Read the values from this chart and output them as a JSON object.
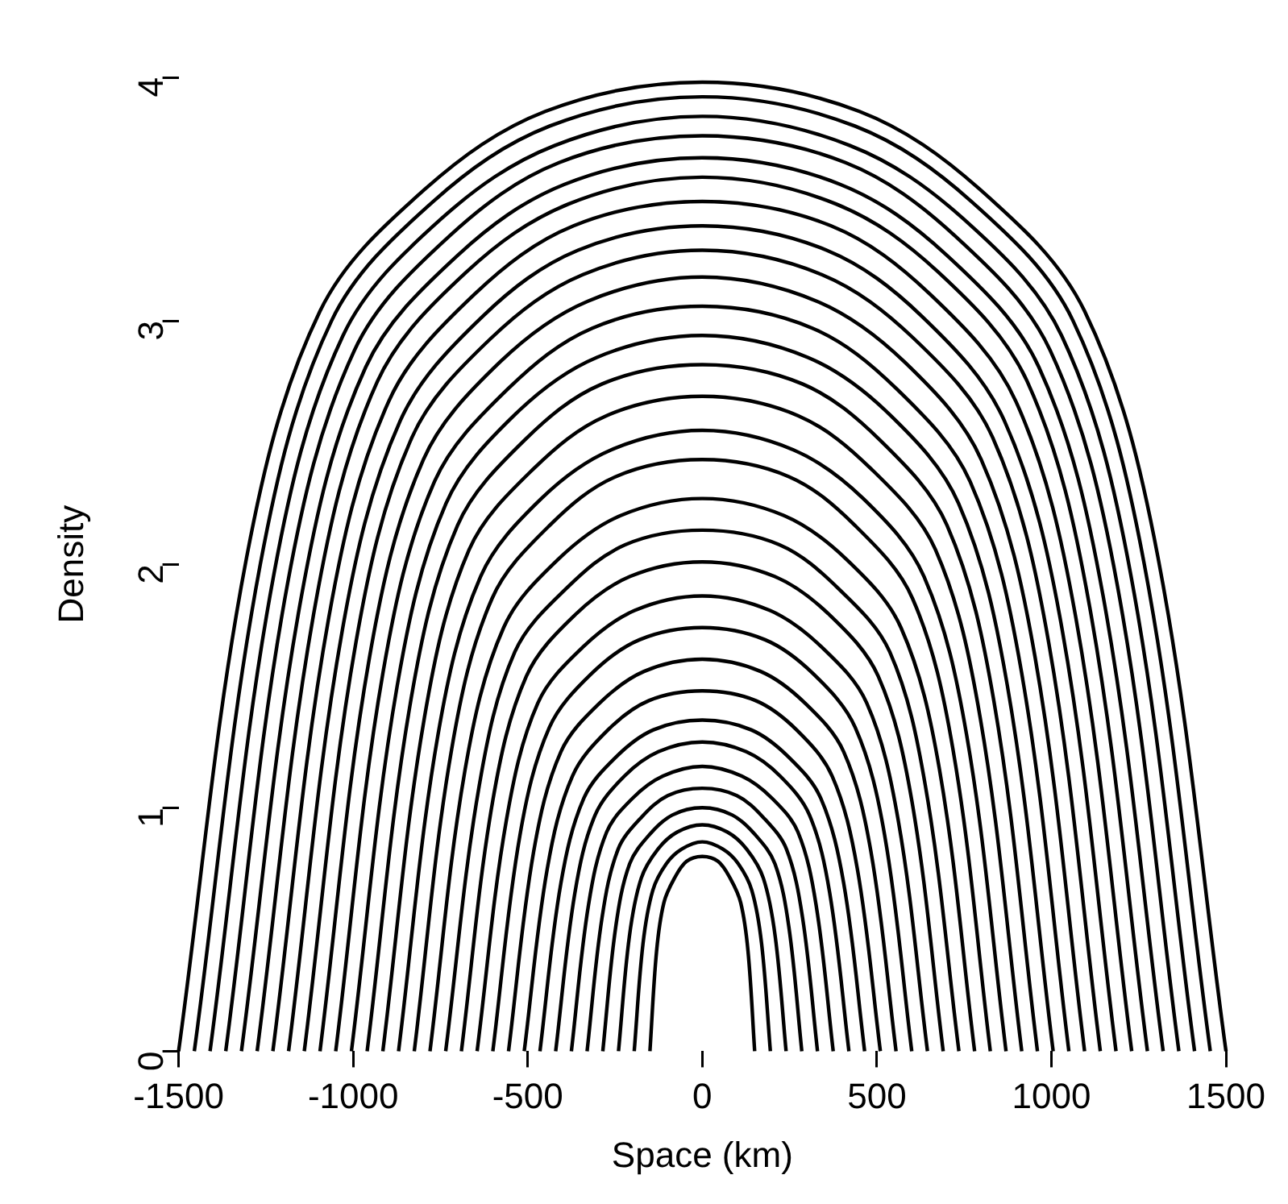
{
  "chart_data": {
    "type": "line",
    "xlabel": "Space (km)",
    "ylabel": "Density",
    "xlim": [
      -1500,
      1500
    ],
    "ylim": [
      0,
      4
    ],
    "xticks": [
      -1500,
      -1000,
      -500,
      0,
      500,
      1000,
      1500
    ],
    "yticks": [
      0,
      1,
      2,
      3,
      4
    ],
    "grid": false,
    "legend": false,
    "marker": "none",
    "line_style": "solid",
    "series": [
      {
        "color": "#000000",
        "x": [
          -1500,
          -1305,
          -1095,
          -795,
          -450,
          0,
          450,
          795,
          1095,
          1305,
          1500
        ],
        "values": [
          0,
          2.03,
          3.04,
          3.54,
          3.86,
          3.98,
          3.86,
          3.54,
          3.04,
          2.03,
          0
        ]
      },
      {
        "color": "#000000",
        "x": [
          -1455,
          -1266,
          -1062,
          -771,
          -437,
          0,
          437,
          771,
          1062,
          1266,
          1455
        ],
        "values": [
          0,
          2.0,
          3.0,
          3.49,
          3.8,
          3.92,
          3.8,
          3.49,
          3.0,
          2.0,
          0
        ]
      },
      {
        "color": "#000000",
        "x": [
          -1410,
          -1227,
          -1029,
          -747,
          -423,
          0,
          423,
          747,
          1029,
          1227,
          1410
        ],
        "values": [
          0,
          1.96,
          2.94,
          3.42,
          3.72,
          3.84,
          3.72,
          3.42,
          2.94,
          1.96,
          0
        ]
      },
      {
        "color": "#000000",
        "x": [
          -1365,
          -1188,
          -996,
          -723,
          -410,
          0,
          410,
          723,
          996,
          1188,
          1365
        ],
        "values": [
          0,
          1.92,
          2.88,
          3.35,
          3.65,
          3.76,
          3.65,
          3.35,
          2.88,
          1.92,
          0
        ]
      },
      {
        "color": "#000000",
        "x": [
          -1320,
          -1148,
          -964,
          -700,
          -396,
          0,
          396,
          700,
          964,
          1148,
          1320
        ],
        "values": [
          0,
          1.87,
          2.81,
          3.27,
          3.56,
          3.67,
          3.56,
          3.27,
          2.81,
          1.87,
          0
        ]
      },
      {
        "color": "#000000",
        "x": [
          -1275,
          -1109,
          -931,
          -676,
          -383,
          0,
          383,
          676,
          931,
          1109,
          1275
        ],
        "values": [
          0,
          1.83,
          2.75,
          3.2,
          3.48,
          3.59,
          3.48,
          3.2,
          2.75,
          1.83,
          0
        ]
      },
      {
        "color": "#000000",
        "x": [
          -1230,
          -1070,
          -898,
          -652,
          -369,
          0,
          369,
          652,
          898,
          1070,
          1230
        ],
        "values": [
          0,
          1.78,
          2.67,
          3.11,
          3.39,
          3.49,
          3.39,
          3.11,
          2.67,
          1.78,
          0
        ]
      },
      {
        "color": "#000000",
        "x": [
          -1185,
          -1031,
          -865,
          -628,
          -356,
          0,
          356,
          628,
          865,
          1031,
          1185
        ],
        "values": [
          0,
          1.73,
          2.59,
          3.02,
          3.29,
          3.39,
          3.29,
          3.02,
          2.59,
          1.73,
          0
        ]
      },
      {
        "color": "#000000",
        "x": [
          -1140,
          -992,
          -832,
          -604,
          -342,
          0,
          342,
          604,
          832,
          992,
          1140
        ],
        "values": [
          0,
          1.68,
          2.52,
          2.93,
          3.19,
          3.29,
          3.19,
          2.93,
          2.52,
          1.68,
          0
        ]
      },
      {
        "color": "#000000",
        "x": [
          -1095,
          -953,
          -799,
          -580,
          -329,
          0,
          329,
          580,
          799,
          953,
          1095
        ],
        "values": [
          0,
          1.62,
          2.43,
          2.83,
          3.08,
          3.18,
          3.08,
          2.83,
          2.43,
          1.62,
          0
        ]
      },
      {
        "color": "#000000",
        "x": [
          -1050,
          -914,
          -767,
          -557,
          -315,
          0,
          315,
          557,
          767,
          914,
          1050
        ],
        "values": [
          0,
          1.56,
          2.34,
          2.72,
          2.97,
          3.06,
          2.97,
          2.72,
          2.34,
          1.56,
          0
        ]
      },
      {
        "color": "#000000",
        "x": [
          -1005,
          -874,
          -734,
          -533,
          -302,
          0,
          302,
          533,
          734,
          874,
          1005
        ],
        "values": [
          0,
          1.5,
          2.25,
          2.62,
          2.85,
          2.94,
          2.85,
          2.62,
          2.25,
          1.5,
          0
        ]
      },
      {
        "color": "#000000",
        "x": [
          -960,
          -835,
          -701,
          -509,
          -288,
          0,
          288,
          509,
          701,
          835,
          960
        ],
        "values": [
          0,
          1.44,
          2.16,
          2.51,
          2.74,
          2.82,
          2.74,
          2.51,
          2.16,
          1.44,
          0
        ]
      },
      {
        "color": "#000000",
        "x": [
          -915,
          -796,
          -668,
          -485,
          -275,
          0,
          275,
          485,
          668,
          796,
          915
        ],
        "values": [
          0,
          1.37,
          2.06,
          2.39,
          2.61,
          2.69,
          2.61,
          2.39,
          2.06,
          1.37,
          0
        ]
      },
      {
        "color": "#000000",
        "x": [
          -870,
          -757,
          -635,
          -461,
          -261,
          0,
          261,
          461,
          635,
          757,
          870
        ],
        "values": [
          0,
          1.3,
          1.95,
          2.27,
          2.47,
          2.55,
          2.47,
          2.27,
          1.95,
          1.3,
          0
        ]
      },
      {
        "color": "#000000",
        "x": [
          -825,
          -718,
          -602,
          -437,
          -248,
          0,
          248,
          437,
          602,
          718,
          825
        ],
        "values": [
          0,
          1.24,
          1.86,
          2.16,
          2.36,
          2.43,
          2.36,
          2.16,
          1.86,
          1.24,
          0
        ]
      },
      {
        "color": "#000000",
        "x": [
          -780,
          -679,
          -569,
          -413,
          -234,
          0,
          234,
          413,
          569,
          679,
          780
        ],
        "values": [
          0,
          1.16,
          1.74,
          2.02,
          2.2,
          2.27,
          2.2,
          2.02,
          1.74,
          1.16,
          0
        ]
      },
      {
        "color": "#000000",
        "x": [
          -735,
          -639,
          -537,
          -390,
          -221,
          0,
          221,
          390,
          537,
          639,
          735
        ],
        "values": [
          0,
          1.09,
          1.64,
          1.9,
          2.08,
          2.14,
          2.08,
          1.9,
          1.64,
          1.09,
          0
        ]
      },
      {
        "color": "#000000",
        "x": [
          -690,
          -600,
          -504,
          -366,
          -207,
          0,
          207,
          366,
          504,
          600,
          690
        ],
        "values": [
          0,
          1.03,
          1.54,
          1.79,
          1.95,
          2.01,
          1.95,
          1.79,
          1.54,
          1.03,
          0
        ]
      },
      {
        "color": "#000000",
        "x": [
          -645,
          -561,
          -471,
          -342,
          -194,
          0,
          194,
          342,
          471,
          561,
          645
        ],
        "values": [
          0,
          0.95,
          1.43,
          1.66,
          1.81,
          1.87,
          1.81,
          1.66,
          1.43,
          0.95,
          0
        ]
      },
      {
        "color": "#000000",
        "x": [
          -600,
          -522,
          -438,
          -318,
          -180,
          0,
          180,
          318,
          438,
          522,
          600
        ],
        "values": [
          0,
          0.89,
          1.33,
          1.55,
          1.69,
          1.74,
          1.69,
          1.55,
          1.33,
          0.89,
          0
        ]
      },
      {
        "color": "#000000",
        "x": [
          -555,
          -483,
          -405,
          -294,
          -167,
          0,
          167,
          294,
          405,
          483,
          555
        ],
        "values": [
          0,
          0.82,
          1.23,
          1.43,
          1.56,
          1.61,
          1.56,
          1.43,
          1.23,
          0.82,
          0
        ]
      },
      {
        "color": "#000000",
        "x": [
          -510,
          -444,
          -372,
          -270,
          -153,
          0,
          153,
          270,
          372,
          444,
          510
        ],
        "values": [
          0,
          0.75,
          1.13,
          1.32,
          1.44,
          1.48,
          1.44,
          1.32,
          1.13,
          0.75,
          0
        ]
      },
      {
        "color": "#000000",
        "x": [
          -465,
          -405,
          -339,
          -246,
          -140,
          0,
          140,
          246,
          339,
          405,
          465
        ],
        "values": [
          0,
          0.69,
          1.04,
          1.21,
          1.32,
          1.36,
          1.32,
          1.21,
          1.04,
          0.69,
          0
        ]
      },
      {
        "color": "#000000",
        "x": [
          -420,
          -365,
          -307,
          -223,
          -126,
          0,
          126,
          223,
          307,
          365,
          420
        ],
        "values": [
          0,
          0.65,
          0.97,
          1.13,
          1.23,
          1.27,
          1.23,
          1.13,
          0.97,
          0.65,
          0
        ]
      },
      {
        "color": "#000000",
        "x": [
          -375,
          -326,
          -274,
          -199,
          -113,
          0,
          113,
          199,
          274,
          326,
          375
        ],
        "values": [
          0,
          0.6,
          0.9,
          1.04,
          1.13,
          1.17,
          1.13,
          1.04,
          0.9,
          0.6,
          0
        ]
      },
      {
        "color": "#000000",
        "x": [
          -330,
          -287,
          -241,
          -175,
          -99,
          0,
          99,
          175,
          241,
          287,
          330
        ],
        "values": [
          0,
          0.55,
          0.83,
          0.96,
          1.05,
          1.08,
          1.05,
          0.96,
          0.83,
          0.55,
          0
        ]
      },
      {
        "color": "#000000",
        "x": [
          -285,
          -248,
          -208,
          -151,
          -86,
          0,
          86,
          151,
          208,
          248,
          285
        ],
        "values": [
          0,
          0.51,
          0.77,
          0.89,
          0.97,
          1.0,
          0.97,
          0.89,
          0.77,
          0.51,
          0
        ]
      },
      {
        "color": "#000000",
        "x": [
          -240,
          -209,
          -175,
          -127,
          -72,
          0,
          72,
          127,
          175,
          209,
          240
        ],
        "values": [
          0,
          0.47,
          0.71,
          0.83,
          0.9,
          0.93,
          0.9,
          0.83,
          0.71,
          0.47,
          0
        ]
      },
      {
        "color": "#000000",
        "x": [
          -195,
          -170,
          -142,
          -103,
          -59,
          0,
          59,
          103,
          142,
          170,
          195
        ],
        "values": [
          0,
          0.44,
          0.66,
          0.77,
          0.83,
          0.86,
          0.83,
          0.77,
          0.66,
          0.44,
          0
        ]
      },
      {
        "color": "#000000",
        "x": [
          -150,
          -131,
          -110,
          -80,
          -45,
          0,
          45,
          80,
          110,
          131,
          150
        ],
        "values": [
          0,
          0.41,
          0.61,
          0.71,
          0.78,
          0.8,
          0.78,
          0.71,
          0.61,
          0.41,
          0
        ]
      }
    ]
  }
}
